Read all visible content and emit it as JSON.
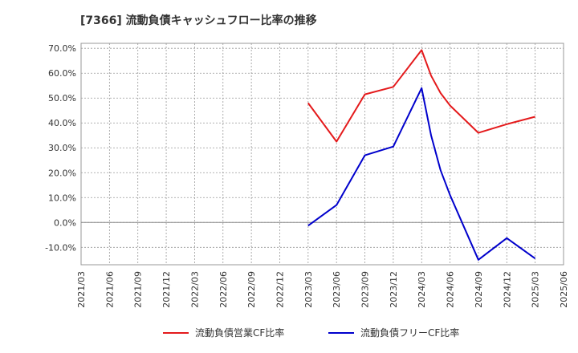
{
  "chart_data": {
    "type": "line",
    "title": "[7366]  流動負債キャッシュフロー比率の推移",
    "xlabel": "",
    "ylabel": "",
    "ylim": [
      -17,
      72
    ],
    "yticks": [
      -10,
      0,
      10,
      20,
      30,
      40,
      50,
      60,
      70
    ],
    "ytick_labels": [
      "-10.0%",
      "0.0%",
      "10.0%",
      "20.0%",
      "30.0%",
      "40.0%",
      "50.0%",
      "60.0%",
      "70.0%"
    ],
    "x_categories": [
      "2021/03",
      "2021/06",
      "2021/09",
      "2021/12",
      "2022/03",
      "2022/06",
      "2022/09",
      "2022/12",
      "2023/03",
      "2023/06",
      "2023/09",
      "2023/12",
      "2024/03",
      "2024/06",
      "2024/09",
      "2024/12",
      "2025/03",
      "2025/06"
    ],
    "grid": true,
    "legend_position": "bottom",
    "series": [
      {
        "name": "流動負債営業CF比率",
        "color": "#e41a1c",
        "x": [
          "2023/03",
          "2023/06",
          "2023/09",
          "2023/12",
          "2024/03",
          "2024/04",
          "2024/05",
          "2024/06",
          "2024/09",
          "2024/12",
          "2025/03"
        ],
        "values": [
          48.0,
          32.5,
          51.5,
          54.5,
          69.3,
          59.0,
          52.0,
          47.0,
          36.0,
          39.5,
          42.5
        ]
      },
      {
        "name": "流動負債フリーCF比率",
        "color": "#0000cc",
        "x": [
          "2023/03",
          "2023/06",
          "2023/09",
          "2023/12",
          "2024/03",
          "2024/04",
          "2024/05",
          "2024/06",
          "2024/09",
          "2024/12",
          "2025/03"
        ],
        "values": [
          -1.3,
          7.0,
          27.0,
          30.5,
          54.0,
          35.0,
          21.0,
          11.0,
          -15.0,
          -6.3,
          -14.5
        ]
      }
    ]
  }
}
